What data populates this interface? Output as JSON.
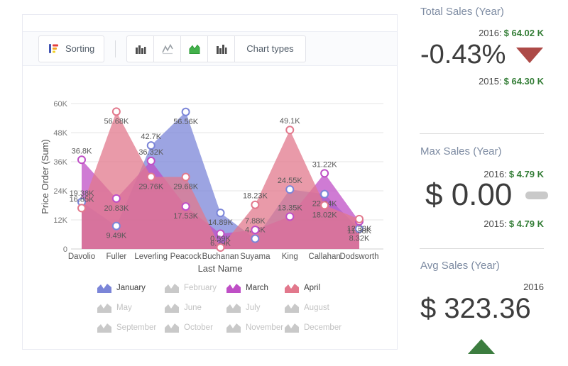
{
  "toolbar": {
    "sorting_label": "Sorting",
    "chart_types_label": "Chart types",
    "icons": [
      "sorting-icon",
      "column-chart-icon",
      "line-chart-icon",
      "area-chart-icon",
      "bar-chart-icon"
    ]
  },
  "chart_data": {
    "type": "area",
    "title": "",
    "xlabel": "Last Name",
    "ylabel": "Price Order (Sum)",
    "categories": [
      "Davolio",
      "Fuller",
      "Leverling",
      "Peacock",
      "Buchanan",
      "Suyama",
      "King",
      "Callahan",
      "Dodsworth"
    ],
    "y_ticks": [
      "0",
      "12K",
      "24K",
      "36K",
      "48K",
      "60K"
    ],
    "ylim": [
      0,
      60000
    ],
    "grid": "horizontal",
    "legend_position": "bottom",
    "series": [
      {
        "name": "January",
        "color": "#7b85d8",
        "values": [
          19380,
          9490,
          42700,
          56560,
          14890,
          4230,
          24550,
          22640,
          8320
        ],
        "labels": [
          "19.38K",
          "9.49K",
          "42.7K",
          "56.56K",
          "14.89K",
          "4.23K",
          "24.55K",
          "22.64K",
          "8.32K"
        ],
        "label_pos": [
          "a",
          "b",
          "a",
          "b",
          "b",
          "a",
          "a",
          "b",
          "b"
        ]
      },
      {
        "name": "March",
        "color": "#bf4fc6",
        "values": [
          36800,
          20830,
          36320,
          17530,
          6290,
          7880,
          13350,
          31220,
          11380
        ],
        "labels": [
          "36.8K",
          "20.83K",
          "36.32K",
          "17.53K",
          "6.29K",
          "7.88K",
          "13.35K",
          "31.22K",
          "11.38K"
        ],
        "label_pos": [
          "a",
          "b",
          "a",
          "b",
          "b",
          "a",
          "a",
          "a",
          "b"
        ]
      },
      {
        "name": "April",
        "color": "#e2788c",
        "values": [
          16850,
          56680,
          29760,
          29680,
          590,
          18230,
          49100,
          18020,
          12330
        ],
        "labels": [
          "16.85K",
          "56.68K",
          "29.76K",
          "29.68K",
          "0.59K",
          "18.23K",
          "49.1K",
          "18.02K",
          "12.33K"
        ],
        "label_pos": [
          "a",
          "b",
          "b",
          "b",
          "a",
          "a",
          "a",
          "b",
          "b"
        ]
      }
    ],
    "legend_items": [
      {
        "label": "January",
        "active": true,
        "color": "#7b85d8"
      },
      {
        "label": "February",
        "active": false
      },
      {
        "label": "March",
        "active": true,
        "color": "#bf4fc6"
      },
      {
        "label": "April",
        "active": true,
        "color": "#e2788c"
      },
      {
        "label": "May",
        "active": false
      },
      {
        "label": "June",
        "active": false
      },
      {
        "label": "July",
        "active": false
      },
      {
        "label": "August",
        "active": false
      },
      {
        "label": "September",
        "active": false
      },
      {
        "label": "October",
        "active": false
      },
      {
        "label": "November",
        "active": false
      },
      {
        "label": "December",
        "active": false
      }
    ],
    "inactive_color": "#c9c9c9"
  },
  "sidebar": {
    "cards": [
      {
        "title": "Total Sales (Year)",
        "row_top": {
          "year": "2016:",
          "value": "$ 64.02 K"
        },
        "big": "-0.43%",
        "indicator": "down",
        "row_bottom": {
          "year": "2015:",
          "value": "$ 64.30 K"
        }
      },
      {
        "title": "Max Sales (Year)",
        "row_top": {
          "year": "2016:",
          "value": "$ 4.79 K"
        },
        "big": "$ 0.00",
        "indicator": "flat",
        "row_bottom": {
          "year": "2015:",
          "value": "$ 4.79 K"
        }
      },
      {
        "title": "Avg Sales (Year)",
        "row_top": {
          "year": "2016",
          "value": ""
        },
        "big": "$ 323.36",
        "indicator": "up"
      }
    ],
    "colors": {
      "up": "#3c7d3f",
      "down": "#ad4a47",
      "flat": "#c9c9c9",
      "value_green": "#337d36",
      "title": "#7d8ba2"
    }
  }
}
